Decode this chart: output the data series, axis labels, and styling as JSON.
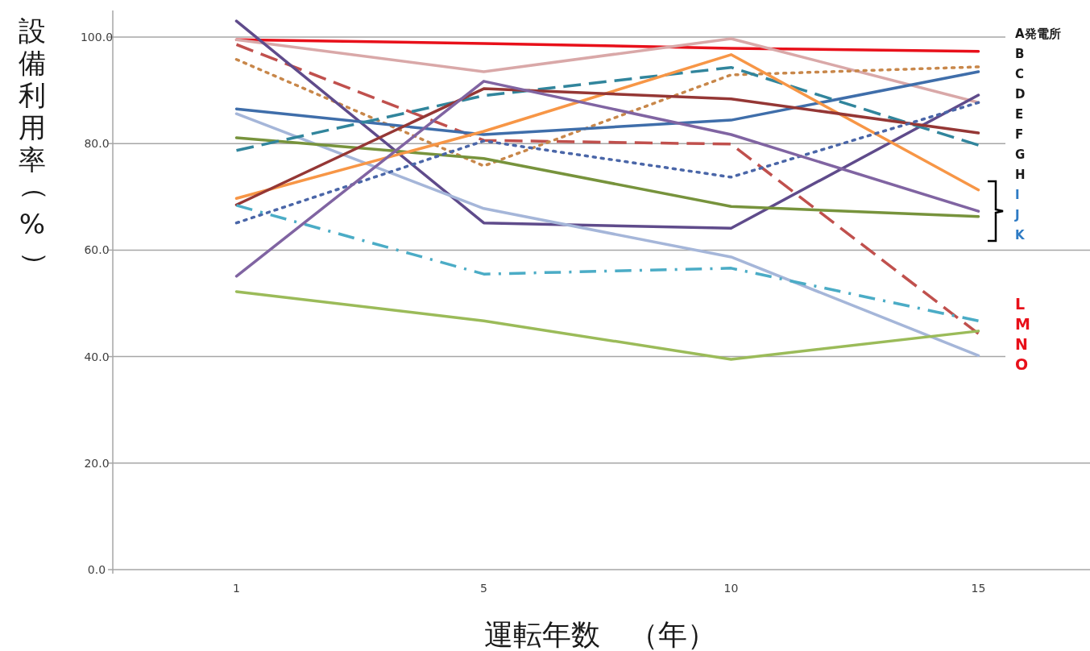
{
  "chart_data": {
    "type": "line",
    "xlabel": "運転年数　（年）",
    "ylabel": "設備利用率（%）",
    "categories": [
      "1",
      "5",
      "10",
      "15"
    ],
    "ylim": [
      0,
      105
    ],
    "yticks": [
      {
        "value": 0,
        "label": "0.0"
      },
      {
        "value": 20,
        "label": "20.0"
      },
      {
        "value": 40,
        "label": "40.0"
      },
      {
        "value": 60,
        "label": "60.0"
      },
      {
        "value": 80,
        "label": "80.0"
      },
      {
        "value": 100,
        "label": "100.0"
      }
    ],
    "grid": "y",
    "marker": "none",
    "series": [
      {
        "color": "#e8101a",
        "line_style": "solid",
        "values": [
          99.5,
          98.8,
          97.9,
          97.3
        ]
      },
      {
        "color": "#d9a8a8",
        "line_style": "solid",
        "values": [
          99.5,
          93.5,
          99.7,
          87.7
        ]
      },
      {
        "color": "#c0504d",
        "line_style": "dashed",
        "values": [
          98.6,
          80.6,
          79.9,
          44.3
        ]
      },
      {
        "color": "#c8874a",
        "line_style": "dotted",
        "values": [
          95.8,
          75.8,
          92.9,
          94.4
        ]
      },
      {
        "color": "#5f4b8b",
        "line_style": "solid",
        "values": [
          103.0,
          65.1,
          64.1,
          89.1
        ]
      },
      {
        "color": "#3f6eaa",
        "line_style": "solid",
        "values": [
          86.5,
          81.7,
          84.4,
          93.5
        ]
      },
      {
        "color": "#a5b6d9",
        "line_style": "solid",
        "values": [
          85.6,
          67.8,
          58.7,
          40.2
        ]
      },
      {
        "color": "#77933c",
        "line_style": "solid",
        "values": [
          81.1,
          77.2,
          68.2,
          66.3
        ]
      },
      {
        "color": "#31859c",
        "line_style": "dashed",
        "values": [
          78.7,
          89.0,
          94.3,
          79.7
        ]
      },
      {
        "color": "#f79646",
        "line_style": "solid",
        "values": [
          69.7,
          82.3,
          96.7,
          71.3
        ]
      },
      {
        "color": "#953735",
        "line_style": "solid",
        "values": [
          68.5,
          90.3,
          88.4,
          82.0
        ]
      },
      {
        "color": "#4a66a8",
        "line_style": "dotted",
        "values": [
          65.1,
          80.5,
          73.7,
          87.7
        ]
      },
      {
        "color": "#4bacc6",
        "line_style": "dashdot",
        "values": [
          68.4,
          55.5,
          56.6,
          46.7
        ]
      },
      {
        "color": "#8064a2",
        "line_style": "solid",
        "values": [
          55.1,
          91.7,
          81.7,
          67.3
        ]
      },
      {
        "color": "#9bbb59",
        "line_style": "solid",
        "values": [
          52.2,
          46.7,
          39.5,
          44.8
        ]
      }
    ],
    "annotations": [
      "A発電所",
      "B",
      "C",
      "D",
      "E",
      "F",
      "G",
      "H",
      "I",
      "J",
      "K",
      "L",
      "M",
      "N",
      "O"
    ]
  }
}
